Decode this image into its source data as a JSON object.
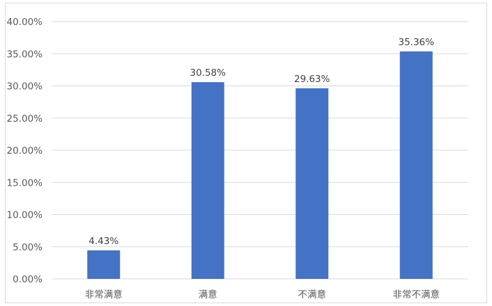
{
  "chart_data": {
    "type": "bar",
    "title": "",
    "xlabel": "",
    "ylabel": "",
    "categories": [
      "非常满意",
      "满意",
      "不满意",
      "非常不满意"
    ],
    "values": [
      4.43,
      30.58,
      29.63,
      35.36
    ],
    "data_labels": [
      "4.43%",
      "30.58%",
      "29.63%",
      "35.36%"
    ],
    "ylim": [
      0,
      40
    ],
    "yticks": [
      "0.00%",
      "5.00%",
      "10.00%",
      "15.00%",
      "20.00%",
      "25.00%",
      "30.00%",
      "35.00%",
      "40.00%"
    ],
    "grid": true,
    "legend": "none",
    "colors": {
      "bar": "#4472c4",
      "grid": "#d9d9d9"
    }
  }
}
